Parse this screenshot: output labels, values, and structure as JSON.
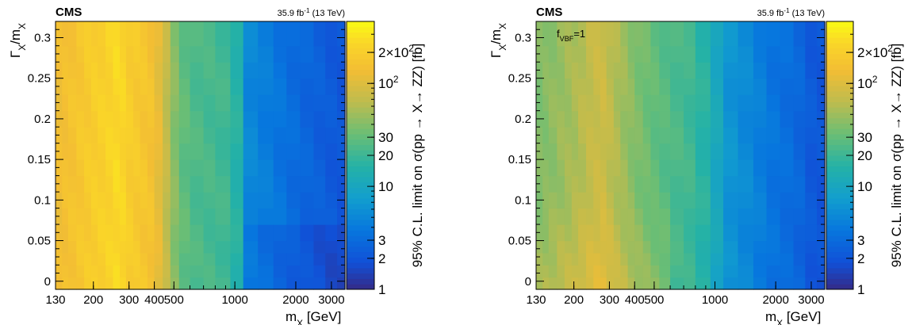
{
  "chart_data": [
    {
      "type": "heatmap",
      "label_experiment": "CMS",
      "label_lumi": "35.9 fb⁻¹ (13 TeV)",
      "annotation": "",
      "xlabel": "m_X [GeV]",
      "ylabel": "Γ_X/m_X",
      "zlabel": "95% C.L. limit on σ(pp → X→ ZZ) [fb]",
      "x_scale": "log",
      "xlim": [
        130,
        3500
      ],
      "ylim": [
        -0.01,
        0.32
      ],
      "z_scale": "log",
      "zlim": [
        1,
        400
      ],
      "x_ticks": [
        130,
        200,
        300,
        400,
        500,
        1000,
        2000,
        3000
      ],
      "x_tick_labels": [
        "130",
        "200",
        "300",
        "400",
        "500",
        "1000",
        "2000",
        "3000"
      ],
      "y_ticks": [
        0,
        0.05,
        0.1,
        0.15,
        0.2,
        0.25,
        0.3
      ],
      "y_tick_labels": [
        "0",
        "0.05",
        "0.1",
        "0.15",
        "0.2",
        "0.25",
        "0.3"
      ],
      "z_ticks": [
        1,
        2,
        3,
        10,
        20,
        30,
        100,
        200
      ],
      "z_tick_labels": [
        "1",
        "2",
        "3",
        "10",
        "20",
        "30",
        "10^2",
        "2×10^2"
      ],
      "x_bins": [
        130,
        140,
        150,
        165,
        180,
        195,
        210,
        230,
        250,
        270,
        290,
        315,
        340,
        370,
        400,
        440,
        480,
        530,
        600,
        700,
        800,
        950,
        1100,
        1300,
        1550,
        1800,
        2100,
        2450,
        2800,
        3200,
        3500
      ],
      "y_bins": [
        -0.01,
        0.005,
        0.02,
        0.035,
        0.05,
        0.07,
        0.09,
        0.11,
        0.13,
        0.15,
        0.17,
        0.19,
        0.21,
        0.23,
        0.25,
        0.27,
        0.29,
        0.32
      ],
      "profile_x": [
        130,
        150,
        170,
        200,
        230,
        270,
        300,
        350,
        400,
        450,
        520,
        600,
        800,
        1000,
        1100,
        1200,
        1500,
        2000,
        2500,
        3000,
        3500
      ],
      "profile_z": [
        130,
        150,
        170,
        200,
        220,
        260,
        200,
        170,
        150,
        80,
        35,
        25,
        22,
        20,
        7,
        5,
        4,
        3,
        2.5,
        2.2,
        2.0
      ]
    },
    {
      "type": "heatmap",
      "label_experiment": "CMS",
      "label_lumi": "35.9 fb⁻¹ (13 TeV)",
      "annotation": "f_VBF=1",
      "xlabel": "m_X [GeV]",
      "ylabel": "Γ_X/m_X",
      "zlabel": "95% C.L. limit on σ(pp → X→ ZZ) [fb]",
      "x_scale": "log",
      "xlim": [
        130,
        3500
      ],
      "ylim": [
        -0.01,
        0.32
      ],
      "z_scale": "log",
      "zlim": [
        1,
        400
      ],
      "x_ticks": [
        130,
        200,
        300,
        400,
        500,
        1000,
        2000,
        3000
      ],
      "x_tick_labels": [
        "130",
        "200",
        "300",
        "400",
        "500",
        "1000",
        "2000",
        "3000"
      ],
      "y_ticks": [
        0,
        0.05,
        0.1,
        0.15,
        0.2,
        0.25,
        0.3
      ],
      "y_tick_labels": [
        "0",
        "0.05",
        "0.1",
        "0.15",
        "0.2",
        "0.25",
        "0.3"
      ],
      "z_ticks": [
        1,
        2,
        3,
        10,
        20,
        30,
        100,
        200
      ],
      "z_tick_labels": [
        "1",
        "2",
        "3",
        "10",
        "20",
        "30",
        "10^2",
        "2×10^2"
      ],
      "x_bins": [
        130,
        140,
        150,
        165,
        180,
        195,
        210,
        230,
        250,
        270,
        290,
        315,
        340,
        370,
        400,
        440,
        480,
        530,
        600,
        700,
        800,
        950,
        1100,
        1300,
        1550,
        1800,
        2100,
        2450,
        2800,
        3200,
        3500
      ],
      "y_bins": [
        -0.01,
        0.005,
        0.02,
        0.035,
        0.05,
        0.07,
        0.09,
        0.11,
        0.13,
        0.15,
        0.17,
        0.19,
        0.21,
        0.23,
        0.25,
        0.27,
        0.29,
        0.32
      ],
      "profile_x": [
        130,
        150,
        170,
        200,
        250,
        280,
        320,
        400,
        500,
        600,
        800,
        1000,
        1100,
        1500,
        2000,
        2500,
        3000,
        3500
      ],
      "profile_z": [
        38,
        42,
        48,
        55,
        75,
        80,
        60,
        40,
        30,
        25,
        20,
        12,
        7,
        5,
        3.5,
        3,
        2.2,
        2.0
      ]
    }
  ]
}
